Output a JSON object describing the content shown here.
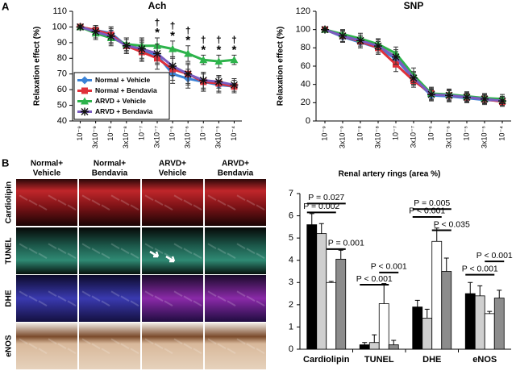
{
  "panel_labels": {
    "a": "A",
    "b": "B"
  },
  "micrographs": {
    "column_labels": [
      [
        "Normal+",
        "Vehicle"
      ],
      [
        "Normal+",
        "Bendavia"
      ],
      [
        "ARVD+",
        "Vehicle"
      ],
      [
        "ARVD+",
        "Bendavia"
      ]
    ],
    "row_labels": [
      "Cardiolipin",
      "TUNEL",
      "DHE",
      "eNOS"
    ]
  },
  "chart_data": [
    {
      "type": "line",
      "title": "Ach",
      "y_label": "Relaxation effect (%)",
      "categories": [
        "10⁻⁹",
        "3x10⁻⁹",
        "10⁻⁸",
        "3x10⁻⁸",
        "10⁻⁷",
        "3x10⁻⁷",
        "10⁻⁶",
        "3x10⁻⁶",
        "10⁻⁵",
        "3x10⁻⁵",
        "10⁻⁴"
      ],
      "ylim": [
        40,
        110
      ],
      "yticks": [
        40,
        50,
        60,
        70,
        80,
        90,
        100,
        110
      ],
      "legend": "lower-left",
      "series": [
        {
          "name": "Normal + Vehicle",
          "color": "#3b82d6",
          "marker": "diamond",
          "values": [
            100,
            98,
            96,
            88,
            85,
            82,
            70,
            67,
            65,
            63,
            62
          ],
          "errors": [
            1,
            3,
            4,
            4,
            6,
            6,
            6,
            6,
            5,
            5,
            4
          ]
        },
        {
          "name": "Normal + Bendavia",
          "color": "#e0303a",
          "marker": "square",
          "values": [
            100,
            98,
            95,
            88,
            84,
            80,
            73,
            70,
            65,
            64,
            62
          ],
          "errors": [
            1,
            3,
            5,
            5,
            6,
            7,
            7,
            7,
            6,
            5,
            4
          ]
        },
        {
          "name": "ARVD + Vehicle",
          "color": "#2db34b",
          "marker": "triangle",
          "values": [
            100,
            96,
            93,
            89,
            88,
            88,
            86,
            83,
            79,
            78,
            79
          ],
          "errors": [
            1,
            4,
            5,
            4,
            5,
            5,
            5,
            5,
            3,
            4,
            3
          ]
        },
        {
          "name": "ARVD + Bendavia",
          "color": "#7a5cc0",
          "marker": "asterisk",
          "values": [
            100,
            97,
            94,
            88,
            86,
            83,
            75,
            70,
            66,
            65,
            63
          ],
          "errors": [
            1,
            4,
            5,
            5,
            6,
            6,
            6,
            6,
            5,
            4,
            4
          ]
        }
      ],
      "dagger_labels": [
        null,
        null,
        null,
        null,
        null,
        "†",
        "†",
        "†",
        "†",
        "†",
        "†"
      ],
      "star_labels": [
        null,
        null,
        null,
        null,
        null,
        "*",
        "*",
        "*",
        "*",
        "*",
        "*"
      ]
    },
    {
      "type": "line",
      "title": "SNP",
      "y_label": "Relaxation effect (%)",
      "categories": [
        "10⁻⁹",
        "3x10⁻⁹",
        "10⁻⁸",
        "3x10⁻⁸",
        "10⁻⁷",
        "3x10⁻⁷",
        "10⁻⁶",
        "3x10⁻⁶",
        "10⁻⁵",
        "3x10⁻⁵",
        "10⁻⁴"
      ],
      "ylim": [
        0,
        120
      ],
      "yticks": [
        0,
        20,
        40,
        60,
        80,
        100,
        120
      ],
      "series": [
        {
          "color": "#3b82d6",
          "marker": "diamond",
          "values": [
            100,
            92,
            86,
            80,
            68,
            46,
            28,
            27,
            25,
            23,
            22
          ],
          "errors": [
            1,
            6,
            6,
            7,
            8,
            7,
            6,
            6,
            5,
            5,
            5
          ]
        },
        {
          "color": "#e0303a",
          "marker": "square",
          "values": [
            100,
            93,
            87,
            80,
            62,
            44,
            30,
            28,
            26,
            24,
            21
          ],
          "errors": [
            1,
            6,
            7,
            7,
            8,
            7,
            6,
            6,
            5,
            5,
            5
          ]
        },
        {
          "color": "#2db34b",
          "marker": "triangle",
          "values": [
            100,
            95,
            90,
            84,
            74,
            50,
            30,
            29,
            27,
            25,
            24
          ],
          "errors": [
            1,
            5,
            6,
            6,
            7,
            8,
            7,
            6,
            5,
            5,
            5
          ]
        },
        {
          "color": "#7a5cc0",
          "marker": "asterisk",
          "values": [
            100,
            93,
            88,
            82,
            70,
            47,
            29,
            28,
            26,
            24,
            22
          ],
          "errors": [
            1,
            6,
            6,
            7,
            8,
            7,
            6,
            6,
            5,
            5,
            5
          ]
        }
      ]
    },
    {
      "type": "bar",
      "title": "Renal artery rings (area %)",
      "categories": [
        "Cardiolipin",
        "TUNEL",
        "DHE",
        "eNOS"
      ],
      "ylim": [
        0,
        7
      ],
      "yticks": [
        0,
        1,
        2,
        3,
        4,
        5,
        6,
        7
      ],
      "series": [
        {
          "color": "#000000",
          "values": [
            5.6,
            0.2,
            1.9,
            2.5
          ],
          "errors": [
            0.5,
            0.1,
            0.3,
            0.5
          ]
        },
        {
          "color": "#cfcfcf",
          "values": [
            5.2,
            0.3,
            1.4,
            2.4
          ],
          "errors": [
            0.45,
            0.35,
            0.4,
            0.45
          ]
        },
        {
          "color": "#ffffff",
          "values": [
            3.0,
            2.05,
            4.85,
            1.6
          ],
          "errors": [
            0.05,
            0.9,
            0.6,
            0.1
          ]
        },
        {
          "color": "#8c8c8c",
          "values": [
            4.05,
            0.2,
            3.5,
            2.3
          ],
          "errors": [
            0.4,
            0.2,
            0.6,
            0.35
          ]
        }
      ],
      "annotations": [
        "P = 0.027",
        "P = 0.002",
        "P = 0.001",
        "P < 0.001",
        "P < 0.001",
        "P = 0.005",
        "P < 0.001",
        "P < 0.035",
        "P < 0.001",
        "P < 0.001"
      ]
    }
  ]
}
